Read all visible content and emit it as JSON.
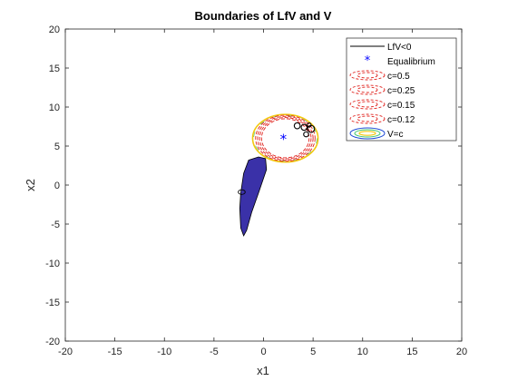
{
  "chart_data": {
    "type": "line",
    "title": "Boundaries of LfV and V",
    "xlabel": "x1",
    "ylabel": "x2",
    "xlim": [
      -20,
      20
    ],
    "ylim": [
      -20,
      20
    ],
    "xticks": [
      "-20",
      "-15",
      "-10",
      "-5",
      "0",
      "5",
      "10",
      "15",
      "20"
    ],
    "yticks": [
      "-20",
      "-15",
      "-10",
      "-5",
      "0",
      "5",
      "10",
      "15",
      "20"
    ],
    "grid": false,
    "legend_position": "top-right",
    "legend": [
      "LfV<0",
      "Equalibrium",
      "c=0.5",
      "c=0.25",
      "c=0.15",
      "c=0.12",
      "V=c"
    ],
    "colors": {
      "lfv_fill": "#3a31a8",
      "lfv_line": "#000000",
      "equilibrium": "#0000ff",
      "level_sets": "#e0201b",
      "v_outer": "#f2c80f",
      "v_mid": "#3ec36b",
      "v_inner": "#1f4bd6"
    },
    "equilibrium": {
      "x": 2,
      "y": 6
    },
    "lfv_region": [
      [
        -1.5,
        3.2
      ],
      [
        -0.5,
        3.6
      ],
      [
        0.2,
        3.4
      ],
      [
        0.3,
        2.0
      ],
      [
        -0.5,
        -1.0
      ],
      [
        -1.2,
        -3.5
      ],
      [
        -1.7,
        -5.8
      ],
      [
        -2.0,
        -6.5
      ],
      [
        -2.3,
        -5.5
      ],
      [
        -2.4,
        -3.0
      ],
      [
        -2.3,
        -1.0
      ],
      [
        -2.0,
        1.5
      ]
    ],
    "small_loop": {
      "x": -2.2,
      "y": -0.9,
      "rx": 0.35,
      "ry": 0.3
    },
    "level_sets": [
      {
        "name": "c=0.5",
        "cx": 2.2,
        "cy": 6.0,
        "rx": 2.4,
        "ry": 2.5
      },
      {
        "name": "c=0.25",
        "cx": 2.2,
        "cy": 6.0,
        "rx": 2.6,
        "ry": 2.65
      },
      {
        "name": "c=0.15",
        "cx": 2.2,
        "cy": 6.0,
        "rx": 2.8,
        "ry": 2.8
      },
      {
        "name": "c=0.12",
        "cx": 2.2,
        "cy": 6.0,
        "rx": 3.0,
        "ry": 2.95
      }
    ],
    "v_contour": {
      "cx": 2.2,
      "cy": 6.0,
      "rx": 3.3,
      "ry": 3.05
    },
    "right_loops": [
      {
        "x": 3.4,
        "y": 7.6,
        "r": 0.3
      },
      {
        "x": 4.1,
        "y": 7.4,
        "r": 0.3
      },
      {
        "x": 4.3,
        "y": 6.5,
        "r": 0.25
      },
      {
        "x": 4.8,
        "y": 7.2,
        "r": 0.35
      },
      {
        "x": 4.6,
        "y": 7.7,
        "r": 0.2
      }
    ]
  }
}
